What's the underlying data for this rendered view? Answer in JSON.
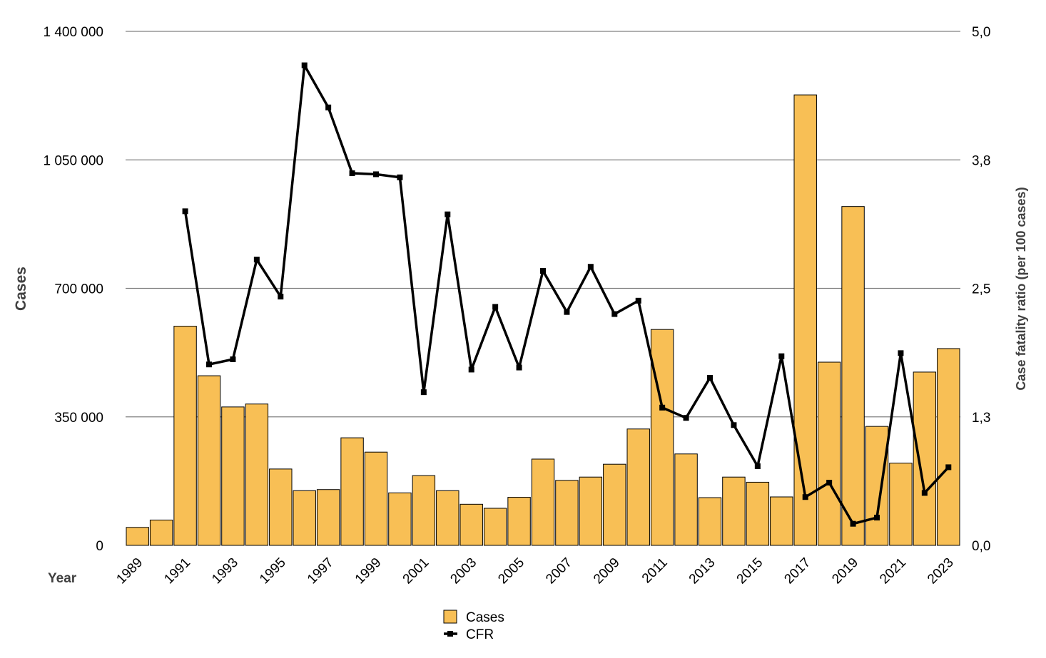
{
  "chart_data": {
    "type": "bar",
    "xlabel": "Year",
    "ylabel": "Cases",
    "y2label": "Case fatality ratio (per 100 cases)",
    "ylim": [
      0,
      1400000
    ],
    "y2lim": [
      0,
      5.0
    ],
    "yticks": [
      0,
      350000,
      700000,
      1050000,
      1400000
    ],
    "ytick_labels": [
      "0",
      "350 000",
      "700 000",
      "1 050 000",
      "1 400 000"
    ],
    "y2tick_labels": [
      "0,0",
      "1,3",
      "2,5",
      "3,8",
      "5,0"
    ],
    "grid": true,
    "legend_placement": "bottom-center",
    "categories": [
      "1989",
      "1990",
      "1991",
      "1992",
      "1993",
      "1994",
      "1995",
      "1996",
      "1997",
      "1998",
      "1999",
      "2000",
      "2001",
      "2002",
      "2003",
      "2004",
      "2005",
      "2006",
      "2007",
      "2008",
      "2009",
      "2010",
      "2011",
      "2012",
      "2013",
      "2014",
      "2015",
      "2016",
      "2017",
      "2018",
      "2019",
      "2020",
      "2021",
      "2022",
      "2023"
    ],
    "xtick_labels": [
      "1989",
      "1991",
      "1993",
      "1995",
      "1997",
      "1999",
      "2001",
      "2003",
      "2005",
      "2007",
      "2009",
      "2011",
      "2013",
      "2015",
      "2017",
      "2019",
      "2021",
      "2023"
    ],
    "series": [
      {
        "name": "Cases",
        "kind": "bar",
        "color": "#F8BF55",
        "axis": "left",
        "values": [
          49000,
          69000,
          597000,
          462000,
          377000,
          385000,
          208000,
          149000,
          152000,
          293000,
          254000,
          143000,
          190000,
          149000,
          112000,
          101000,
          131000,
          235000,
          177000,
          186000,
          221000,
          317000,
          588000,
          249000,
          130000,
          186000,
          172000,
          132000,
          1227000,
          499000,
          923000,
          324000,
          224000,
          472000,
          536000
        ]
      },
      {
        "name": "CFR",
        "kind": "line",
        "color": "#000000",
        "axis": "right",
        "values": [
          null,
          null,
          3.25,
          1.76,
          1.81,
          2.78,
          2.42,
          4.67,
          4.26,
          3.62,
          3.61,
          3.58,
          1.49,
          3.22,
          1.71,
          2.32,
          1.73,
          2.67,
          2.27,
          2.71,
          2.25,
          2.38,
          1.34,
          1.24,
          1.63,
          1.17,
          0.77,
          1.84,
          0.47,
          0.61,
          0.21,
          0.27,
          1.87,
          0.51,
          0.76
        ]
      }
    ]
  }
}
